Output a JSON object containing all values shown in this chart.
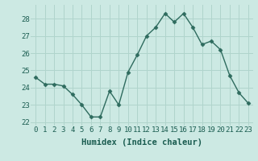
{
  "x": [
    0,
    1,
    2,
    3,
    4,
    5,
    6,
    7,
    8,
    9,
    10,
    11,
    12,
    13,
    14,
    15,
    16,
    17,
    18,
    19,
    20,
    21,
    22,
    23
  ],
  "y": [
    24.6,
    24.2,
    24.2,
    24.1,
    23.6,
    23.0,
    22.3,
    22.3,
    23.8,
    23.0,
    24.9,
    25.9,
    27.0,
    27.5,
    28.3,
    27.8,
    28.3,
    27.5,
    26.5,
    26.7,
    26.2,
    24.7,
    23.7,
    23.1
  ],
  "line_color": "#2e6b5e",
  "marker": "D",
  "marker_size": 2.5,
  "bg_color": "#cce9e3",
  "grid_color": "#b0d4cc",
  "xlabel": "Humidex (Indice chaleur)",
  "ylim": [
    21.8,
    28.8
  ],
  "xlim": [
    -0.5,
    23.5
  ],
  "yticks": [
    22,
    23,
    24,
    25,
    26,
    27,
    28
  ],
  "xticks": [
    0,
    1,
    2,
    3,
    4,
    5,
    6,
    7,
    8,
    9,
    10,
    11,
    12,
    13,
    14,
    15,
    16,
    17,
    18,
    19,
    20,
    21,
    22,
    23
  ],
  "xtick_labels": [
    "0",
    "1",
    "2",
    "3",
    "4",
    "5",
    "6",
    "7",
    "8",
    "9",
    "10",
    "11",
    "12",
    "13",
    "14",
    "15",
    "16",
    "17",
    "18",
    "19",
    "20",
    "21",
    "22",
    "23"
  ],
  "tick_fontsize": 6.5,
  "xlabel_fontsize": 7.5,
  "line_width": 1.0
}
